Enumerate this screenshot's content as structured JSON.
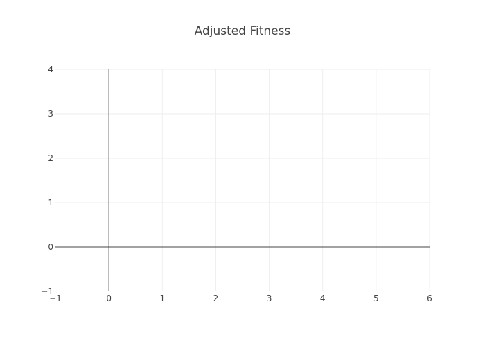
{
  "chart_data": {
    "type": "line",
    "title": "Adjusted Fitness",
    "xlabel": "",
    "ylabel": "",
    "xlim": [
      -1,
      6
    ],
    "ylim": [
      -1,
      4
    ],
    "x_ticks": [
      -1,
      0,
      1,
      2,
      3,
      4,
      5,
      6
    ],
    "y_ticks": [
      -1,
      0,
      1,
      2,
      3,
      4
    ],
    "x_tick_labels": [
      "−1",
      "0",
      "1",
      "2",
      "3",
      "4",
      "5",
      "6"
    ],
    "y_tick_labels": [
      "−1",
      "0",
      "1",
      "2",
      "3",
      "4"
    ],
    "grid": true,
    "zeroline": true,
    "series": [],
    "colors": {
      "grid": "#eeeeee",
      "zeroline": "#444444",
      "text": "#444444",
      "background": "#ffffff"
    }
  }
}
